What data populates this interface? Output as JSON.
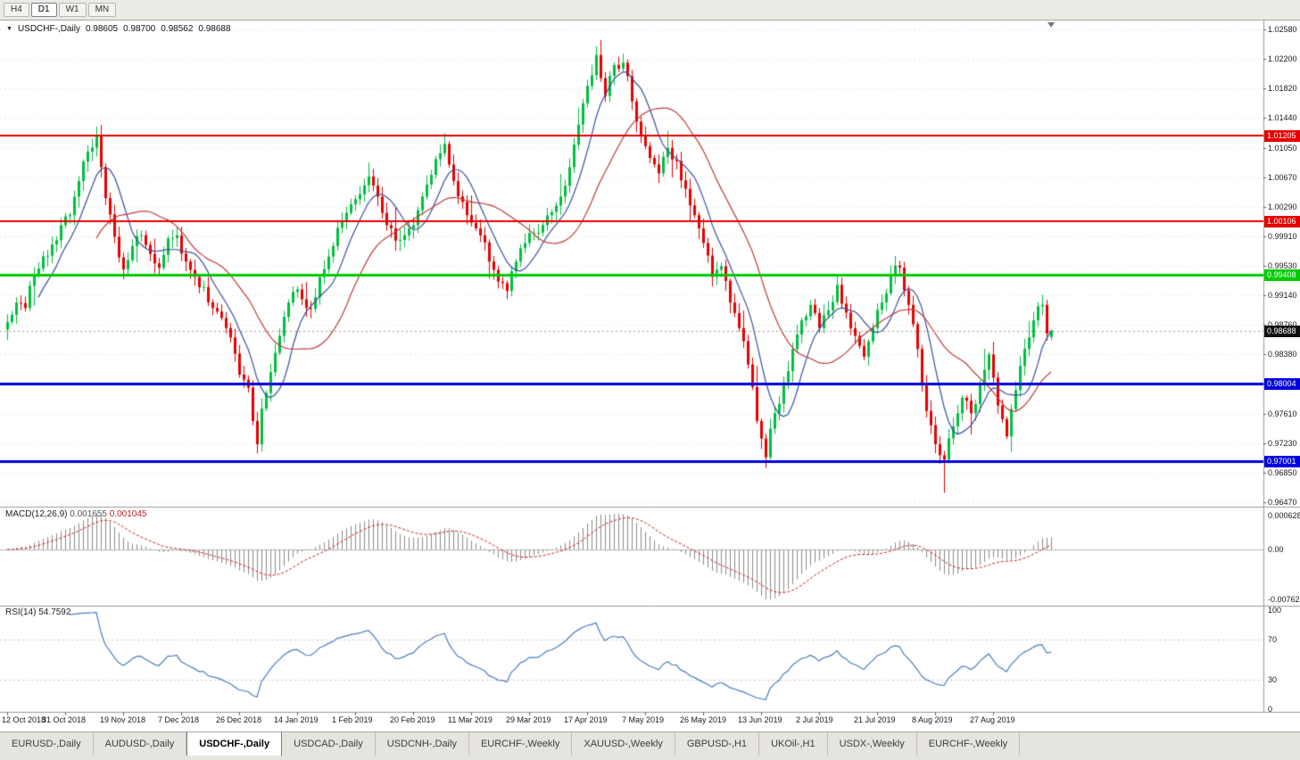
{
  "toolbar": {
    "buttons": [
      {
        "label": "H4"
      },
      {
        "label": "D1"
      },
      {
        "label": "W1"
      },
      {
        "label": "MN"
      }
    ]
  },
  "chart_data": {
    "type": "candlestick",
    "symbol": "USDCHF",
    "timeframe": "Daily",
    "title": "USDCHF-,Daily",
    "header_ohlc": {
      "open": "0.98605",
      "high": "0.98700",
      "low": "0.98562",
      "close": "0.98688"
    },
    "current_price": {
      "value": 0.98688,
      "label": "0.98688"
    },
    "price_range": [
      0.9647,
      1.0258
    ],
    "y_ticks": [
      "1.02580",
      "1.02200",
      "1.01820",
      "1.01440",
      "1.01050",
      "1.00670",
      "1.00290",
      "0.99910",
      "0.99530",
      "0.99140",
      "0.98760",
      "0.98380",
      "0.98000",
      "0.97610",
      "0.97230",
      "0.96850",
      "0.96470"
    ],
    "x_labels": [
      {
        "label": "12 Oct 2018",
        "i": 0
      },
      {
        "label": "31 Oct 2018",
        "i": 13
      },
      {
        "label": "19 Nov 2018",
        "i": 26
      },
      {
        "label": "7 Dec 2018",
        "i": 39
      },
      {
        "label": "26 Dec 2018",
        "i": 52
      },
      {
        "label": "14 Jan 2019",
        "i": 65
      },
      {
        "label": "1 Feb 2019",
        "i": 78
      },
      {
        "label": "20 Feb 2019",
        "i": 91
      },
      {
        "label": "11 Mar 2019",
        "i": 104
      },
      {
        "label": "29 Mar 2019",
        "i": 117
      },
      {
        "label": "17 Apr 2019",
        "i": 130
      },
      {
        "label": "7 May 2019",
        "i": 143
      },
      {
        "label": "26 May 2019",
        "i": 156
      },
      {
        "label": "13 Jun 2019",
        "i": 169
      },
      {
        "label": "2 Jul 2019",
        "i": 182
      },
      {
        "label": "21 Jul 2019",
        "i": 195
      },
      {
        "label": "8 Aug 2019",
        "i": 208
      },
      {
        "label": "27 Aug 2019",
        "i": 221
      }
    ],
    "candle_count": 235,
    "close_anchors": [
      [
        0,
        0.988
      ],
      [
        2,
        0.9905
      ],
      [
        4,
        0.9898
      ],
      [
        6,
        0.9942
      ],
      [
        8,
        0.9965
      ],
      [
        10,
        0.998
      ],
      [
        12,
        1.0005
      ],
      [
        14,
        1.0018
      ],
      [
        16,
        1.0062
      ],
      [
        18,
        1.01
      ],
      [
        20,
        1.0122
      ],
      [
        21,
        1.008
      ],
      [
        22,
        1.004
      ],
      [
        24,
        0.999
      ],
      [
        26,
        0.9948
      ],
      [
        28,
        0.9978
      ],
      [
        30,
        0.9992
      ],
      [
        32,
        0.9968
      ],
      [
        34,
        0.995
      ],
      [
        36,
        0.9988
      ],
      [
        38,
        0.9992
      ],
      [
        40,
        0.9958
      ],
      [
        42,
        0.9938
      ],
      [
        44,
        0.9925
      ],
      [
        46,
        0.9898
      ],
      [
        48,
        0.9885
      ],
      [
        50,
        0.986
      ],
      [
        52,
        0.9812
      ],
      [
        54,
        0.9795
      ],
      [
        55,
        0.9752
      ],
      [
        56,
        0.9722
      ],
      [
        57,
        0.9768
      ],
      [
        59,
        0.9815
      ],
      [
        61,
        0.9862
      ],
      [
        63,
        0.9905
      ],
      [
        65,
        0.9922
      ],
      [
        67,
        0.9898
      ],
      [
        69,
        0.9912
      ],
      [
        71,
        0.9948
      ],
      [
        73,
        0.9978
      ],
      [
        75,
        1.001
      ],
      [
        77,
        1.0032
      ],
      [
        79,
        1.0045
      ],
      [
        81,
        1.0068
      ],
      [
        83,
        1.0042
      ],
      [
        85,
        1.0005
      ],
      [
        87,
        0.9985
      ],
      [
        89,
        0.9992
      ],
      [
        91,
        1.0005
      ],
      [
        93,
        1.0042
      ],
      [
        95,
        1.007
      ],
      [
        97,
        1.0098
      ],
      [
        98,
        1.011
      ],
      [
        100,
        1.0062
      ],
      [
        102,
        1.0035
      ],
      [
        104,
        1.0008
      ],
      [
        106,
        0.9992
      ],
      [
        108,
        0.9958
      ],
      [
        110,
        0.9932
      ],
      [
        112,
        0.992
      ],
      [
        114,
        0.9958
      ],
      [
        116,
        0.9982
      ],
      [
        118,
        0.9995
      ],
      [
        120,
        1.0005
      ],
      [
        122,
        1.0022
      ],
      [
        124,
        1.0042
      ],
      [
        126,
        1.008
      ],
      [
        128,
        1.0135
      ],
      [
        130,
        1.0185
      ],
      [
        132,
        1.0225
      ],
      [
        133,
        1.0195
      ],
      [
        134,
        1.0172
      ],
      [
        135,
        1.0198
      ],
      [
        136,
        1.0212
      ],
      [
        138,
        1.0215
      ],
      [
        140,
        1.0165
      ],
      [
        142,
        1.0122
      ],
      [
        144,
        1.0092
      ],
      [
        146,
        1.0072
      ],
      [
        148,
        1.0105
      ],
      [
        150,
        1.0088
      ],
      [
        152,
        1.0052
      ],
      [
        154,
        1.0018
      ],
      [
        156,
        0.9982
      ],
      [
        158,
        0.9938
      ],
      [
        160,
        0.9952
      ],
      [
        162,
        0.9905
      ],
      [
        164,
        0.9872
      ],
      [
        166,
        0.9825
      ],
      [
        168,
        0.9752
      ],
      [
        170,
        0.9705
      ],
      [
        171,
        0.9742
      ],
      [
        172,
        0.9762
      ],
      [
        174,
        0.9802
      ],
      [
        176,
        0.9845
      ],
      [
        178,
        0.9882
      ],
      [
        180,
        0.9902
      ],
      [
        182,
        0.9872
      ],
      [
        184,
        0.9895
      ],
      [
        186,
        0.9928
      ],
      [
        188,
        0.9892
      ],
      [
        190,
        0.9862
      ],
      [
        192,
        0.9835
      ],
      [
        194,
        0.9872
      ],
      [
        196,
        0.9905
      ],
      [
        198,
        0.9942
      ],
      [
        200,
        0.995
      ],
      [
        202,
        0.9902
      ],
      [
        204,
        0.9845
      ],
      [
        206,
        0.9765
      ],
      [
        208,
        0.9722
      ],
      [
        210,
        0.9702
      ],
      [
        212,
        0.9745
      ],
      [
        214,
        0.9782
      ],
      [
        216,
        0.9762
      ],
      [
        218,
        0.9798
      ],
      [
        220,
        0.9838
      ],
      [
        222,
        0.9772
      ],
      [
        224,
        0.9732
      ],
      [
        226,
        0.9792
      ],
      [
        228,
        0.9845
      ],
      [
        230,
        0.9882
      ],
      [
        232,
        0.9902
      ],
      [
        233,
        0.9865
      ],
      [
        234,
        0.98688
      ]
    ],
    "spike_highs": [
      [
        20,
        1.01284
      ],
      [
        98,
        1.0124
      ],
      [
        132,
        1.0235
      ],
      [
        232,
        0.9915
      ]
    ],
    "spike_lows": [
      [
        56,
        0.9712
      ],
      [
        170,
        0.9693
      ],
      [
        210,
        0.9659
      ]
    ],
    "last_candle": {
      "open": 0.98605,
      "high": 0.987,
      "low": 0.98562,
      "close": 0.98688
    },
    "horizontal_lines": [
      {
        "price": 1.01205,
        "label": "1.01205",
        "color": "#e60000",
        "width": 2,
        "name": "resistance-upper"
      },
      {
        "price": 1.00106,
        "label": "1.00106",
        "color": "#e60000",
        "width": 2,
        "name": "resistance-lower"
      },
      {
        "price": 0.99408,
        "label": "0.99408",
        "color": "#00cc00",
        "width": 3,
        "name": "pivot-green"
      },
      {
        "price": 0.98004,
        "label": "0.98004",
        "color": "#0000dd",
        "width": 3,
        "name": "support-upper"
      },
      {
        "price": 0.97001,
        "label": "0.97001",
        "color": "#0000dd",
        "width": 3,
        "name": "support-lower"
      }
    ],
    "moving_averages": [
      {
        "period": 8,
        "color": "#3a4fa0",
        "name": "ma-fast"
      },
      {
        "period": 21,
        "color": "#bf3b3b",
        "name": "ma-slow"
      }
    ],
    "macd": {
      "label": "MACD(12,26,9)",
      "params": [
        12,
        26,
        9
      ],
      "value_main": "0.001655",
      "value_signal": "0.001045",
      "axis_labels": [
        "0.0006286",
        "0.00",
        "-0.00762"
      ]
    },
    "rsi": {
      "label": "RSI(14)",
      "period": 14,
      "value": "54.7592",
      "axis_labels": [
        "100",
        "70",
        "30",
        "0"
      ],
      "levels": [
        70,
        30
      ]
    },
    "colors": {
      "up": "#00bf3f",
      "down": "#e60000",
      "grid": "#d9d9d9",
      "rsi_line": "#4a7dc0",
      "macd_hist": "#8c8c8c",
      "macd_signal": "#cc2222",
      "current_line": "#999999",
      "tag_current_bg": "#111111"
    }
  },
  "tabs": [
    {
      "label": "EURUSD-,Daily",
      "active": false
    },
    {
      "label": "AUDUSD-,Daily",
      "active": false
    },
    {
      "label": "USDCHF-,Daily",
      "active": true
    },
    {
      "label": "USDCAD-,Daily",
      "active": false
    },
    {
      "label": "USDCNH-,Daily",
      "active": false
    },
    {
      "label": "EURCHF-,Weekly",
      "active": false
    },
    {
      "label": "XAUUSD-,Weekly",
      "active": false
    },
    {
      "label": "GBPUSD-,H1",
      "active": false
    },
    {
      "label": "UKOil-,H1",
      "active": false
    },
    {
      "label": "USDX-,Weekly",
      "active": false
    },
    {
      "label": "EURCHF-,Weekly",
      "active": false
    }
  ]
}
